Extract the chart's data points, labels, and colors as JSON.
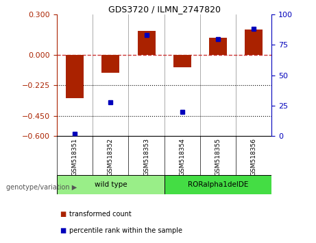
{
  "title": "GDS3720 / ILMN_2747820",
  "categories": [
    "GSM518351",
    "GSM518352",
    "GSM518353",
    "GSM518354",
    "GSM518355",
    "GSM518356"
  ],
  "red_values": [
    -0.32,
    -0.13,
    0.18,
    -0.09,
    0.13,
    0.19
  ],
  "blue_values_pct": [
    2,
    28,
    83,
    20,
    80,
    88
  ],
  "ylim_left": [
    -0.6,
    0.3
  ],
  "ylim_right": [
    0,
    100
  ],
  "yticks_left": [
    0.3,
    0,
    -0.225,
    -0.45,
    -0.6
  ],
  "yticks_right": [
    100,
    75,
    50,
    25,
    0
  ],
  "hlines_dotted": [
    -0.225,
    -0.45
  ],
  "hline_dashed": 0,
  "red_color": "#AA2200",
  "blue_color": "#0000BB",
  "dashed_color": "#CC3333",
  "groups": [
    {
      "label": "wild type",
      "indices": [
        0,
        1,
        2
      ],
      "color": "#99EE88"
    },
    {
      "label": "RORalpha1delDE",
      "indices": [
        3,
        4,
        5
      ],
      "color": "#44DD44"
    }
  ],
  "group_label": "genotype/variation",
  "legend_red": "transformed count",
  "legend_blue": "percentile rank within the sample",
  "bar_width": 0.5,
  "marker_size": 5,
  "plot_bg": "#FFFFFF",
  "fig_bg": "#FFFFFF",
  "xticklabel_bg": "#CCCCCC",
  "sep_color": "#888888"
}
